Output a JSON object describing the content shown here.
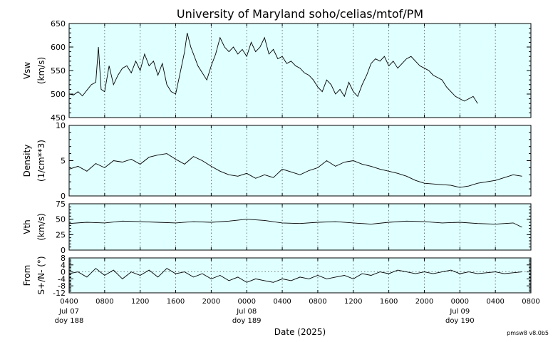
{
  "title": "University of Maryland  soho/celias/mtof/PM",
  "xlabel": "Date (2025)",
  "version": "pmsw8 v8.0b5",
  "colors": {
    "panel_bg": "#e0ffff",
    "line": "#000000",
    "grid": "#555555"
  },
  "x_ticks": {
    "times": [
      "0400",
      "0800",
      "1200",
      "1600",
      "2000",
      "0000",
      "0400",
      "0800",
      "1200",
      "1600",
      "2000",
      "0000",
      "0400",
      "0800"
    ],
    "day_labels": [
      {
        "index": 0,
        "date": "Jul 07",
        "doy": "doy 188"
      },
      {
        "index": 5,
        "date": "Jul 08",
        "doy": "doy 189"
      },
      {
        "index": 11,
        "date": "Jul 09",
        "doy": "doy 190"
      }
    ]
  },
  "chart_data": [
    {
      "type": "line",
      "ylabel_lines": [
        "Vsw",
        "(km/s)"
      ],
      "ylim": [
        450,
        650
      ],
      "yticks": [
        "450",
        "500",
        "550",
        "600",
        "650"
      ],
      "x_unit": "hours after 2025-07-07 04:00",
      "xlim": [
        0,
        52
      ],
      "series": [
        {
          "points": [
            [
              0,
              500
            ],
            [
              0.5,
              498
            ],
            [
              1,
              505
            ],
            [
              1.5,
              496
            ],
            [
              2,
              508
            ],
            [
              2.5,
              520
            ],
            [
              3,
              525
            ],
            [
              3.3,
              600
            ],
            [
              3.6,
              510
            ],
            [
              4,
              505
            ],
            [
              4.5,
              560
            ],
            [
              5,
              520
            ],
            [
              5.5,
              540
            ],
            [
              6,
              555
            ],
            [
              6.5,
              560
            ],
            [
              7,
              545
            ],
            [
              7.5,
              570
            ],
            [
              8,
              550
            ],
            [
              8.5,
              585
            ],
            [
              9,
              560
            ],
            [
              9.5,
              570
            ],
            [
              10,
              540
            ],
            [
              10.5,
              565
            ],
            [
              11,
              520
            ],
            [
              11.5,
              505
            ],
            [
              12,
              500
            ],
            [
              12.5,
              545
            ],
            [
              13,
              590
            ],
            [
              13.3,
              630
            ],
            [
              13.7,
              600
            ],
            [
              14,
              585
            ],
            [
              14.5,
              560
            ],
            [
              15,
              545
            ],
            [
              15.5,
              530
            ],
            [
              16,
              560
            ],
            [
              16.5,
              585
            ],
            [
              17,
              620
            ],
            [
              17.5,
              600
            ],
            [
              18,
              590
            ],
            [
              18.5,
              600
            ],
            [
              19,
              585
            ],
            [
              19.5,
              595
            ],
            [
              20,
              580
            ],
            [
              20.5,
              610
            ],
            [
              21,
              590
            ],
            [
              21.5,
              600
            ],
            [
              22,
              620
            ],
            [
              22.5,
              585
            ],
            [
              23,
              595
            ],
            [
              23.5,
              575
            ],
            [
              24,
              580
            ],
            [
              24.5,
              565
            ],
            [
              25,
              570
            ],
            [
              25.5,
              560
            ],
            [
              26,
              555
            ],
            [
              26.5,
              545
            ],
            [
              27,
              540
            ],
            [
              27.5,
              530
            ],
            [
              28,
              515
            ],
            [
              28.5,
              505
            ],
            [
              29,
              530
            ],
            [
              29.5,
              520
            ],
            [
              30,
              500
            ],
            [
              30.5,
              510
            ],
            [
              31,
              495
            ],
            [
              31.5,
              525
            ],
            [
              32,
              505
            ],
            [
              32.5,
              495
            ],
            [
              33,
              520
            ],
            [
              33.5,
              540
            ],
            [
              34,
              565
            ],
            [
              34.5,
              575
            ],
            [
              35,
              570
            ],
            [
              35.5,
              580
            ],
            [
              36,
              560
            ],
            [
              36.5,
              570
            ],
            [
              37,
              555
            ],
            [
              37.5,
              565
            ],
            [
              38,
              575
            ],
            [
              38.5,
              580
            ],
            [
              39,
              570
            ],
            [
              39.5,
              560
            ],
            [
              40,
              555
            ],
            [
              40.5,
              550
            ],
            [
              41,
              540
            ],
            [
              41.5,
              535
            ],
            [
              42,
              530
            ],
            [
              42.5,
              515
            ],
            [
              43,
              505
            ],
            [
              43.5,
              495
            ],
            [
              44,
              490
            ],
            [
              44.5,
              485
            ],
            [
              45,
              490
            ],
            [
              45.5,
              495
            ],
            [
              46,
              480
            ]
          ]
        }
      ]
    },
    {
      "type": "line",
      "ylabel_lines": [
        "Density",
        "(1/cm**3)"
      ],
      "ylim": [
        0,
        10
      ],
      "yticks": [
        "0",
        "5",
        "10"
      ],
      "x_unit": "hours after 2025-07-07 04:00",
      "xlim": [
        0,
        52
      ],
      "series": [
        {
          "points": [
            [
              0,
              3.8
            ],
            [
              1,
              4.2
            ],
            [
              2,
              3.5
            ],
            [
              3,
              4.6
            ],
            [
              4,
              4.0
            ],
            [
              5,
              5.0
            ],
            [
              6,
              4.8
            ],
            [
              7,
              5.2
            ],
            [
              8,
              4.5
            ],
            [
              9,
              5.5
            ],
            [
              10,
              5.8
            ],
            [
              11,
              6.0
            ],
            [
              12,
              5.2
            ],
            [
              13,
              4.5
            ],
            [
              14,
              5.6
            ],
            [
              15,
              5.0
            ],
            [
              16,
              4.2
            ],
            [
              17,
              3.5
            ],
            [
              18,
              3.0
            ],
            [
              19,
              2.8
            ],
            [
              20,
              3.2
            ],
            [
              21,
              2.5
            ],
            [
              22,
              3.0
            ],
            [
              23,
              2.6
            ],
            [
              24,
              3.8
            ],
            [
              25,
              3.4
            ],
            [
              26,
              3.0
            ],
            [
              27,
              3.6
            ],
            [
              28,
              4.0
            ],
            [
              29,
              5.0
            ],
            [
              30,
              4.2
            ],
            [
              31,
              4.8
            ],
            [
              32,
              5.0
            ],
            [
              33,
              4.5
            ],
            [
              34,
              4.2
            ],
            [
              35,
              3.8
            ],
            [
              36,
              3.5
            ],
            [
              37,
              3.2
            ],
            [
              38,
              2.8
            ],
            [
              39,
              2.2
            ],
            [
              40,
              1.8
            ],
            [
              41,
              1.7
            ],
            [
              42,
              1.6
            ],
            [
              43,
              1.5
            ],
            [
              44,
              1.2
            ],
            [
              45,
              1.4
            ],
            [
              46,
              1.8
            ],
            [
              47,
              2.0
            ],
            [
              48,
              2.2
            ],
            [
              49,
              2.6
            ],
            [
              50,
              3.0
            ],
            [
              51,
              2.8
            ]
          ]
        }
      ]
    },
    {
      "type": "line",
      "ylabel_lines": [
        "Vth",
        "(km/s)"
      ],
      "ylim": [
        0,
        75
      ],
      "yticks": [
        "0",
        "25",
        "50",
        "75"
      ],
      "x_unit": "hours after 2025-07-07 04:00",
      "xlim": [
        0,
        52
      ],
      "series": [
        {
          "points": [
            [
              0,
              43
            ],
            [
              2,
              45
            ],
            [
              4,
              44
            ],
            [
              6,
              47
            ],
            [
              8,
              46
            ],
            [
              10,
              45
            ],
            [
              12,
              44
            ],
            [
              14,
              46
            ],
            [
              16,
              45
            ],
            [
              18,
              47
            ],
            [
              20,
              50
            ],
            [
              22,
              48
            ],
            [
              24,
              44
            ],
            [
              26,
              43
            ],
            [
              28,
              45
            ],
            [
              30,
              46
            ],
            [
              32,
              44
            ],
            [
              34,
              42
            ],
            [
              36,
              45
            ],
            [
              38,
              47
            ],
            [
              40,
              46
            ],
            [
              42,
              44
            ],
            [
              44,
              45
            ],
            [
              46,
              43
            ],
            [
              48,
              42
            ],
            [
              50,
              44
            ],
            [
              51,
              37
            ]
          ]
        }
      ]
    },
    {
      "type": "line",
      "ylabel_lines": [
        "From",
        "S+/N- (°)"
      ],
      "ylim": [
        -12,
        8
      ],
      "yticks": [
        "-12",
        "-8",
        "-4",
        "0",
        "4",
        "8"
      ],
      "x_unit": "hours after 2025-07-07 04:00",
      "xlim": [
        0,
        52
      ],
      "series": [
        {
          "points": [
            [
              0,
              -1
            ],
            [
              1,
              0
            ],
            [
              2,
              -3
            ],
            [
              3,
              2
            ],
            [
              4,
              -2
            ],
            [
              5,
              1
            ],
            [
              6,
              -4
            ],
            [
              7,
              0
            ],
            [
              8,
              -2
            ],
            [
              9,
              1
            ],
            [
              10,
              -3
            ],
            [
              11,
              2
            ],
            [
              12,
              -1
            ],
            [
              13,
              0
            ],
            [
              14,
              -3
            ],
            [
              15,
              -1
            ],
            [
              16,
              -4
            ],
            [
              17,
              -2
            ],
            [
              18,
              -5
            ],
            [
              19,
              -3
            ],
            [
              20,
              -6
            ],
            [
              21,
              -4
            ],
            [
              22,
              -5
            ],
            [
              23,
              -6
            ],
            [
              24,
              -4
            ],
            [
              25,
              -5
            ],
            [
              26,
              -3
            ],
            [
              27,
              -4
            ],
            [
              28,
              -2
            ],
            [
              29,
              -4
            ],
            [
              30,
              -3
            ],
            [
              31,
              -2
            ],
            [
              32,
              -4
            ],
            [
              33,
              -1
            ],
            [
              34,
              -2
            ],
            [
              35,
              0
            ],
            [
              36,
              -1
            ],
            [
              37,
              1
            ],
            [
              38,
              0
            ],
            [
              39,
              -1
            ],
            [
              40,
              0
            ],
            [
              41,
              -1
            ],
            [
              42,
              0
            ],
            [
              43,
              1
            ],
            [
              44,
              -1
            ],
            [
              45,
              0
            ],
            [
              46,
              -1
            ],
            [
              47,
              -0.5
            ],
            [
              48,
              0
            ],
            [
              49,
              -1
            ],
            [
              50,
              -0.5
            ],
            [
              51,
              0
            ]
          ]
        }
      ]
    }
  ]
}
